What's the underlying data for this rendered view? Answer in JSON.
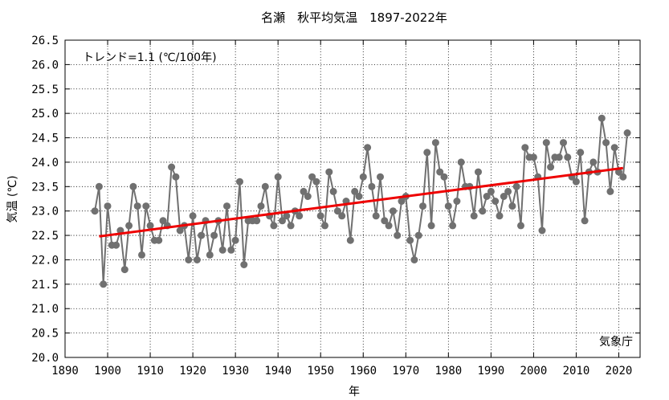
{
  "chart_data": {
    "type": "line",
    "title": "名瀬　秋平均気温　1897-2022年",
    "xlabel": "年",
    "ylabel": "気温 (℃)",
    "annotation": "トレンド=1.1 (℃/100年)",
    "credit": "気象庁",
    "xlim": [
      1890,
      2025
    ],
    "ylim": [
      20.0,
      26.5
    ],
    "x_ticks": [
      1890,
      1900,
      1910,
      1920,
      1930,
      1940,
      1950,
      1960,
      1970,
      1980,
      1990,
      2000,
      2010,
      2020
    ],
    "y_ticks": [
      20.0,
      20.5,
      21.0,
      21.5,
      22.0,
      22.5,
      23.0,
      23.5,
      24.0,
      24.5,
      25.0,
      25.5,
      26.0,
      26.5
    ],
    "x_tick_labels": [
      "1890",
      "1900",
      "1910",
      "1920",
      "1930",
      "1940",
      "1950",
      "1960",
      "1970",
      "1980",
      "1990",
      "2000",
      "2010",
      "2020"
    ],
    "y_tick_labels": [
      "20.0",
      "20.5",
      "21.0",
      "21.5",
      "22.0",
      "22.5",
      "23.0",
      "23.5",
      "24.0",
      "24.5",
      "25.0",
      "25.5",
      "26.0",
      "26.5"
    ],
    "grid": true,
    "series_color": "#707070",
    "trend_color": "#ee0000",
    "series": [
      {
        "x": [
          1897,
          1898,
          1899,
          1900,
          1901,
          1902,
          1903,
          1904,
          1905,
          1906,
          1907,
          1908,
          1909,
          1910,
          1911,
          1912,
          1913,
          1914,
          1915,
          1916,
          1917,
          1918,
          1919,
          1920,
          1921,
          1922,
          1923,
          1924,
          1925,
          1926,
          1927,
          1928,
          1929,
          1930,
          1931,
          1932,
          1933,
          1934,
          1935,
          1936,
          1937,
          1938,
          1939,
          1940,
          1941,
          1942,
          1943,
          1944,
          1945,
          1946,
          1947,
          1948,
          1949,
          1950,
          1951,
          1952,
          1953,
          1954,
          1955,
          1956,
          1957,
          1958,
          1959,
          1960,
          1961,
          1962,
          1963,
          1964,
          1965,
          1966,
          1967,
          1968,
          1969,
          1970,
          1971,
          1972,
          1973,
          1974,
          1975,
          1976,
          1977,
          1978,
          1979,
          1980,
          1981,
          1982,
          1983,
          1984,
          1985,
          1986,
          1987,
          1988,
          1989,
          1990,
          1991,
          1992,
          1993,
          1994,
          1995,
          1996,
          1997,
          1998,
          1999,
          2000,
          2001,
          2002,
          2003,
          2004,
          2005,
          2006,
          2007,
          2008,
          2009,
          2010,
          2011,
          2012,
          2013,
          2014,
          2015,
          2016,
          2017,
          2018,
          2019,
          2020,
          2021,
          2022
        ],
        "values": [
          23.0,
          23.5,
          21.5,
          23.1,
          22.3,
          22.3,
          22.6,
          21.8,
          22.7,
          23.5,
          23.1,
          22.1,
          23.1,
          22.7,
          22.4,
          22.4,
          22.8,
          22.7,
          23.9,
          23.7,
          22.6,
          22.7,
          22.0,
          22.9,
          22.0,
          22.5,
          22.8,
          22.1,
          22.5,
          22.8,
          22.2,
          23.1,
          22.2,
          22.4,
          23.6,
          21.9,
          22.8,
          22.8,
          22.8,
          23.1,
          23.5,
          22.9,
          22.7,
          23.7,
          22.8,
          22.9,
          22.7,
          23.0,
          22.9,
          23.4,
          23.3,
          23.7,
          23.6,
          22.9,
          22.7,
          23.8,
          23.4,
          23.0,
          22.9,
          23.2,
          22.4,
          23.4,
          23.3,
          23.7,
          24.3,
          23.5,
          22.9,
          23.7,
          22.8,
          22.7,
          23.0,
          22.5,
          23.2,
          23.3,
          22.4,
          22.0,
          22.5,
          23.1,
          24.2,
          22.7,
          24.4,
          23.8,
          23.7,
          23.1,
          22.7,
          23.2,
          24.0,
          23.5,
          23.5,
          22.9,
          23.8,
          23.0,
          23.3,
          23.4,
          23.2,
          22.9,
          23.3,
          23.4,
          23.1,
          23.5,
          22.7,
          24.3,
          24.1,
          24.1,
          23.7,
          22.6,
          24.4,
          23.9,
          24.1,
          24.1,
          24.4,
          24.1,
          23.7,
          23.6,
          24.2,
          22.8,
          23.8,
          24.0,
          23.8,
          24.9,
          24.4,
          23.4,
          24.3,
          23.8,
          23.7,
          24.6
        ]
      }
    ],
    "trend": {
      "x": [
        1898,
        2021
      ],
      "values": [
        22.48,
        23.88
      ]
    }
  }
}
